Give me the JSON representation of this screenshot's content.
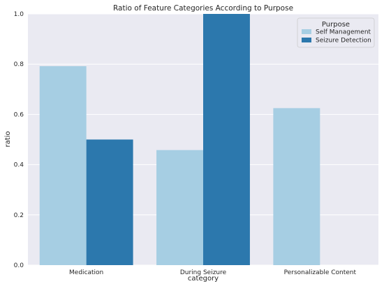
{
  "chart_data": {
    "type": "bar",
    "title": "Ratio of Feature Categories According to Purpose",
    "xlabel": "category",
    "ylabel": "ratio",
    "ylim": [
      0,
      1.0
    ],
    "yticks": [
      0.0,
      0.2,
      0.4,
      0.6,
      0.8,
      1.0
    ],
    "categories": [
      "Medication",
      "During Seizure",
      "Personalizable Content"
    ],
    "series": [
      {
        "name": "Self Management",
        "color": "#a6cee3",
        "values": [
          0.792,
          0.458,
          0.625
        ]
      },
      {
        "name": "Seizure Detection",
        "color": "#2c78ad",
        "values": [
          0.5,
          1.0,
          0.0
        ]
      }
    ],
    "grid": true,
    "legend": {
      "title": "Purpose",
      "position": "top-right"
    },
    "background": "#eaeaf2"
  }
}
